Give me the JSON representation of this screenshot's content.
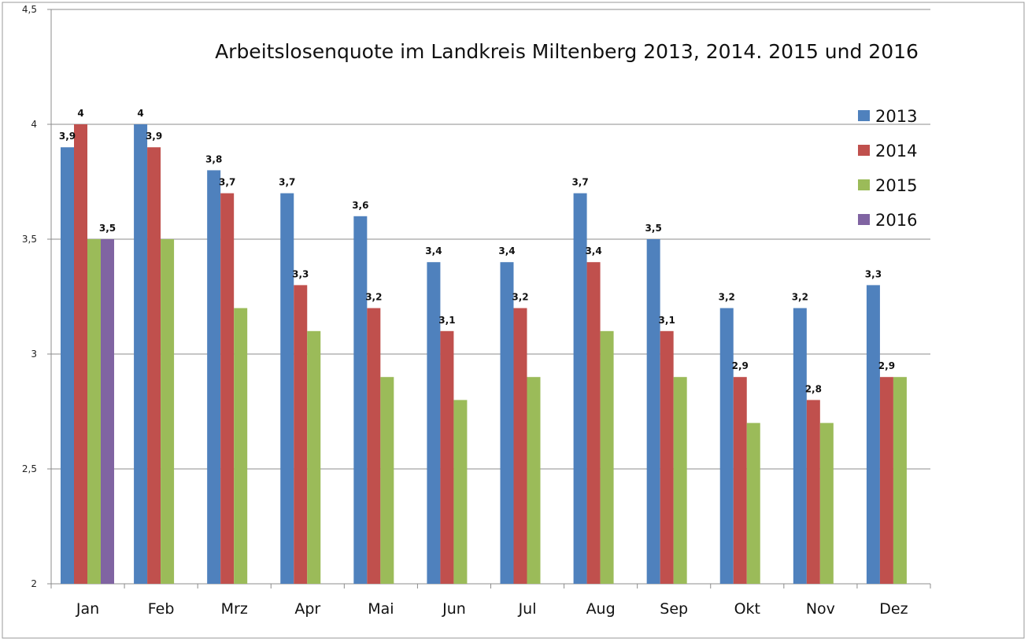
{
  "chart_data": {
    "type": "bar",
    "title": "Arbeitslosenquote im Landkreis Miltenberg 2013, 2014. 2015 und 2016",
    "xlabel": "",
    "ylabel": "",
    "categories": [
      "Jan",
      "Feb",
      "Mrz",
      "Apr",
      "Mai",
      "Jun",
      "Jul",
      "Aug",
      "Sep",
      "Okt",
      "Nov",
      "Dez"
    ],
    "ylim": [
      2,
      4.5
    ],
    "yticks": [
      2,
      2.5,
      3,
      3.5,
      4,
      4.5
    ],
    "ytick_labels": [
      "2",
      "2,5",
      "3",
      "3,5",
      "4",
      "4,5"
    ],
    "grid": true,
    "legend_position": "right",
    "series": [
      {
        "name": "2013",
        "color": "#4f81bd",
        "values": [
          3.9,
          4.0,
          3.8,
          3.7,
          3.6,
          3.4,
          3.4,
          3.7,
          3.5,
          3.2,
          3.2,
          3.3
        ],
        "labels": [
          "3,9",
          "4",
          "3,8",
          "3,7",
          "3,6",
          "3,4",
          "3,4",
          "3,7",
          "3,5",
          "3,2",
          "3,2",
          "3,3"
        ]
      },
      {
        "name": "2014",
        "color": "#c0504d",
        "values": [
          4.0,
          3.9,
          3.7,
          3.3,
          3.2,
          3.1,
          3.2,
          3.4,
          3.1,
          2.9,
          2.8,
          2.9
        ],
        "labels": [
          "4",
          "3,9",
          "3,7",
          "3,3",
          "3,2",
          "3,1",
          "3,2",
          "3,4",
          "3,1",
          "2,9",
          "2,8",
          "2,9"
        ]
      },
      {
        "name": "2015",
        "color": "#9bbb59",
        "values": [
          3.5,
          3.5,
          3.2,
          3.1,
          2.9,
          2.8,
          2.9,
          3.1,
          2.9,
          2.7,
          2.7,
          2.9
        ],
        "labels": [
          "",
          "",
          "",
          "",
          "",
          "",
          "",
          "",
          "",
          "",
          "",
          ""
        ]
      },
      {
        "name": "2016",
        "color": "#8064a2",
        "values": [
          3.5,
          null,
          null,
          null,
          null,
          null,
          null,
          null,
          null,
          null,
          null,
          null
        ],
        "labels": [
          "3,5",
          "",
          "",
          "",
          "",
          "",
          "",
          "",
          "",
          "",
          "",
          ""
        ]
      }
    ]
  }
}
